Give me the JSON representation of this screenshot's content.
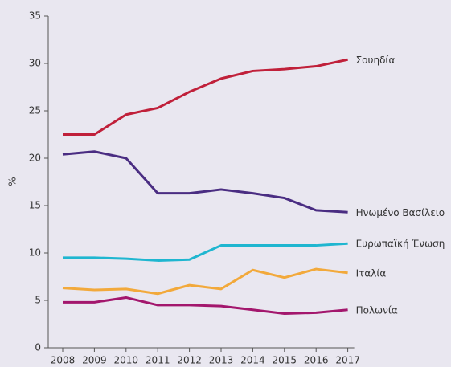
{
  "chart_data": {
    "type": "line",
    "y_label": "%",
    "categories": [
      "2008",
      "2009",
      "2010",
      "2011",
      "2012",
      "2013",
      "2014",
      "2015",
      "2016",
      "2017"
    ],
    "series": [
      {
        "name": "Σουηδία",
        "color": "#c0203a",
        "values": [
          22.5,
          22.5,
          24.6,
          25.3,
          27.0,
          28.4,
          29.2,
          29.4,
          29.7,
          30.4
        ]
      },
      {
        "name": "Ηνωμένο Βασίλειο",
        "color": "#4a2d82",
        "values": [
          20.4,
          20.7,
          20.0,
          16.3,
          16.3,
          16.7,
          16.3,
          15.8,
          14.5,
          14.3
        ]
      },
      {
        "name": "Ευρωπαϊκή Ένωση",
        "color": "#1fb6d0",
        "values": [
          9.5,
          9.5,
          9.4,
          9.2,
          9.3,
          10.8,
          10.8,
          10.8,
          10.8,
          11.0
        ]
      },
      {
        "name": "Ιταλία",
        "color": "#f2a93b",
        "values": [
          6.3,
          6.1,
          6.2,
          5.7,
          6.6,
          6.2,
          8.2,
          7.4,
          8.3,
          7.9
        ]
      },
      {
        "name": "Πολωνία",
        "color": "#a3176d",
        "values": [
          4.8,
          4.8,
          5.3,
          4.5,
          4.5,
          4.4,
          4.0,
          3.6,
          3.7,
          4.0
        ]
      }
    ],
    "ylim": [
      0,
      35
    ],
    "yticks": [
      0,
      5,
      10,
      15,
      20,
      25,
      30,
      35
    ],
    "grid": false,
    "legend": "line-end"
  }
}
